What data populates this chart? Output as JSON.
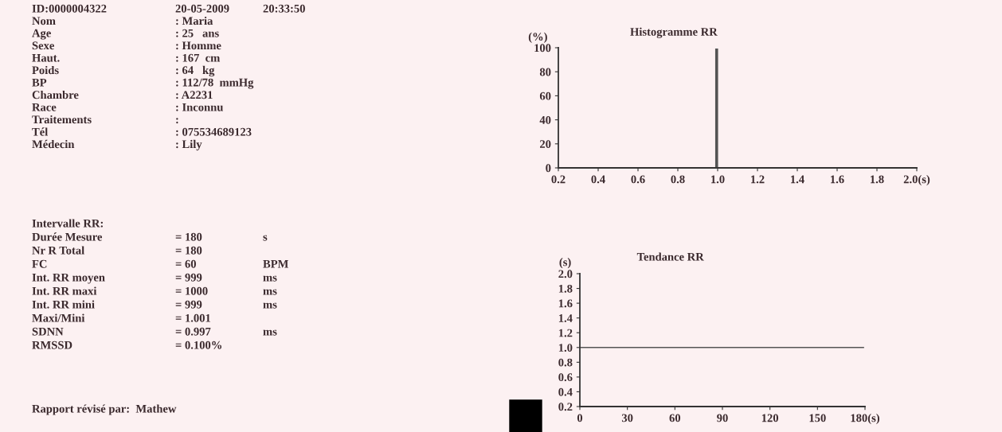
{
  "chart_data": [
    {
      "type": "other",
      "annotations": [
        "ID:0000004322\t20-05-2009\t20:33:50",
        "Nom\t: Maria",
        "Age\t: 25   ans",
        "Sexe\t: Homme",
        "Haut.\t: 167  cm",
        "Poids\t: 64   kg",
        "BP\t: 112/78  mmHg",
        "Chambre\t: A2231",
        "Race\t: Inconnu",
        "Traitements\t:",
        "Tél\t: 075534689123",
        "Médecin\t: Lily",
        "Intervalle RR:",
        "Durée Mesure\t= 180\ts",
        "Nr R Total\t= 180",
        "FC\t= 60\tBPM",
        "Int. RR moyen\t= 999\tms",
        "Int. RR maxi\t= 1000\tms",
        "Int. RR mini\t= 999\tms",
        "Maxi/Mini\t= 1.001",
        "SDNN\t= 0.997\tms",
        "RMSSD\t= 0.100%",
        "Rapport révisé par:  Mathew"
      ]
    },
    {
      "type": "histogram",
      "title": "Histogramme RR",
      "ylabel": "(%)",
      "bins": [
        0.99,
        1.0
      ],
      "values": [
        99
      ],
      "color": "#555555",
      "xlim": [
        0.2,
        2.0
      ],
      "xticks": [
        0.2,
        0.4,
        0.6,
        0.8,
        {
          "value": 1.0,
          "label": "1.0"
        },
        1.2,
        1.4,
        1.6,
        1.8,
        {
          "value": 2.0,
          "label": "2.0(s)"
        }
      ],
      "ylim": [
        0,
        100
      ],
      "yticks": [
        0,
        20,
        40,
        60,
        80,
        100
      ],
      "grid": false,
      "legend": false
    },
    {
      "type": "line",
      "title": "Tendance RR",
      "ylabel": "(s)",
      "x": [
        0,
        179
      ],
      "values": [
        1.0,
        1.0
      ],
      "color": "#555555",
      "xlim": [
        0,
        180
      ],
      "xticks": [
        0,
        30,
        60,
        90,
        120,
        150,
        {
          "value": 180,
          "label": "180(s)"
        }
      ],
      "ylim": [
        0.2,
        2.0
      ],
      "yticks": [
        0.2,
        0.4,
        0.6,
        0.8,
        {
          "value": 1.0,
          "label": "1.0"
        },
        1.2,
        1.4,
        1.6,
        1.8,
        {
          "value": 2.0,
          "label": "2.0"
        }
      ],
      "grid": false,
      "legend": false,
      "marker": "none",
      "line_style": "solid"
    }
  ]
}
